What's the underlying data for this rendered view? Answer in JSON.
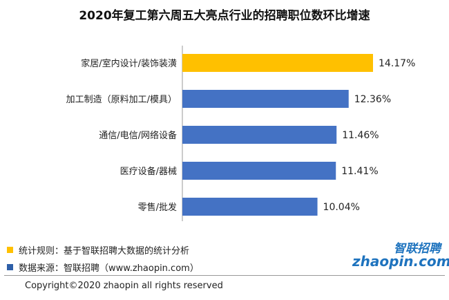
{
  "chart_data": {
    "type": "bar",
    "orientation": "horizontal",
    "title": "2020年复工第六周五大亮点行业的招聘职位数环比增速",
    "categories": [
      "家居/室内设计/装饰装潢",
      "加工制造（原料加工/模具）",
      "通信/电信/网络设备",
      "医疗设备/器械",
      "零售/批发"
    ],
    "values": [
      14.17,
      12.36,
      11.46,
      11.41,
      10.04
    ],
    "value_labels": [
      "14.17%",
      "12.36%",
      "11.46%",
      "11.41%",
      "10.04%"
    ],
    "unit": "%",
    "xlim": [
      0,
      14.17
    ],
    "grid": false,
    "colors": [
      "#FFC000",
      "#4472C4",
      "#4472C4",
      "#4472C4",
      "#4472C4"
    ]
  },
  "notes": [
    {
      "text": "统计规则：基于智联招聘大数据的统计分析",
      "color": "#FFC000"
    },
    {
      "text": "数据来源：智联招聘（www.zhaopin.com）",
      "color": "#2E5FA8"
    }
  ],
  "logo": {
    "cn": "智联招聘",
    "en": "zhaopin.com",
    "color": "#1E73BE",
    "accent": "#F39800"
  },
  "copyright": "Copyright©2020 zhaopin all rights reserved"
}
